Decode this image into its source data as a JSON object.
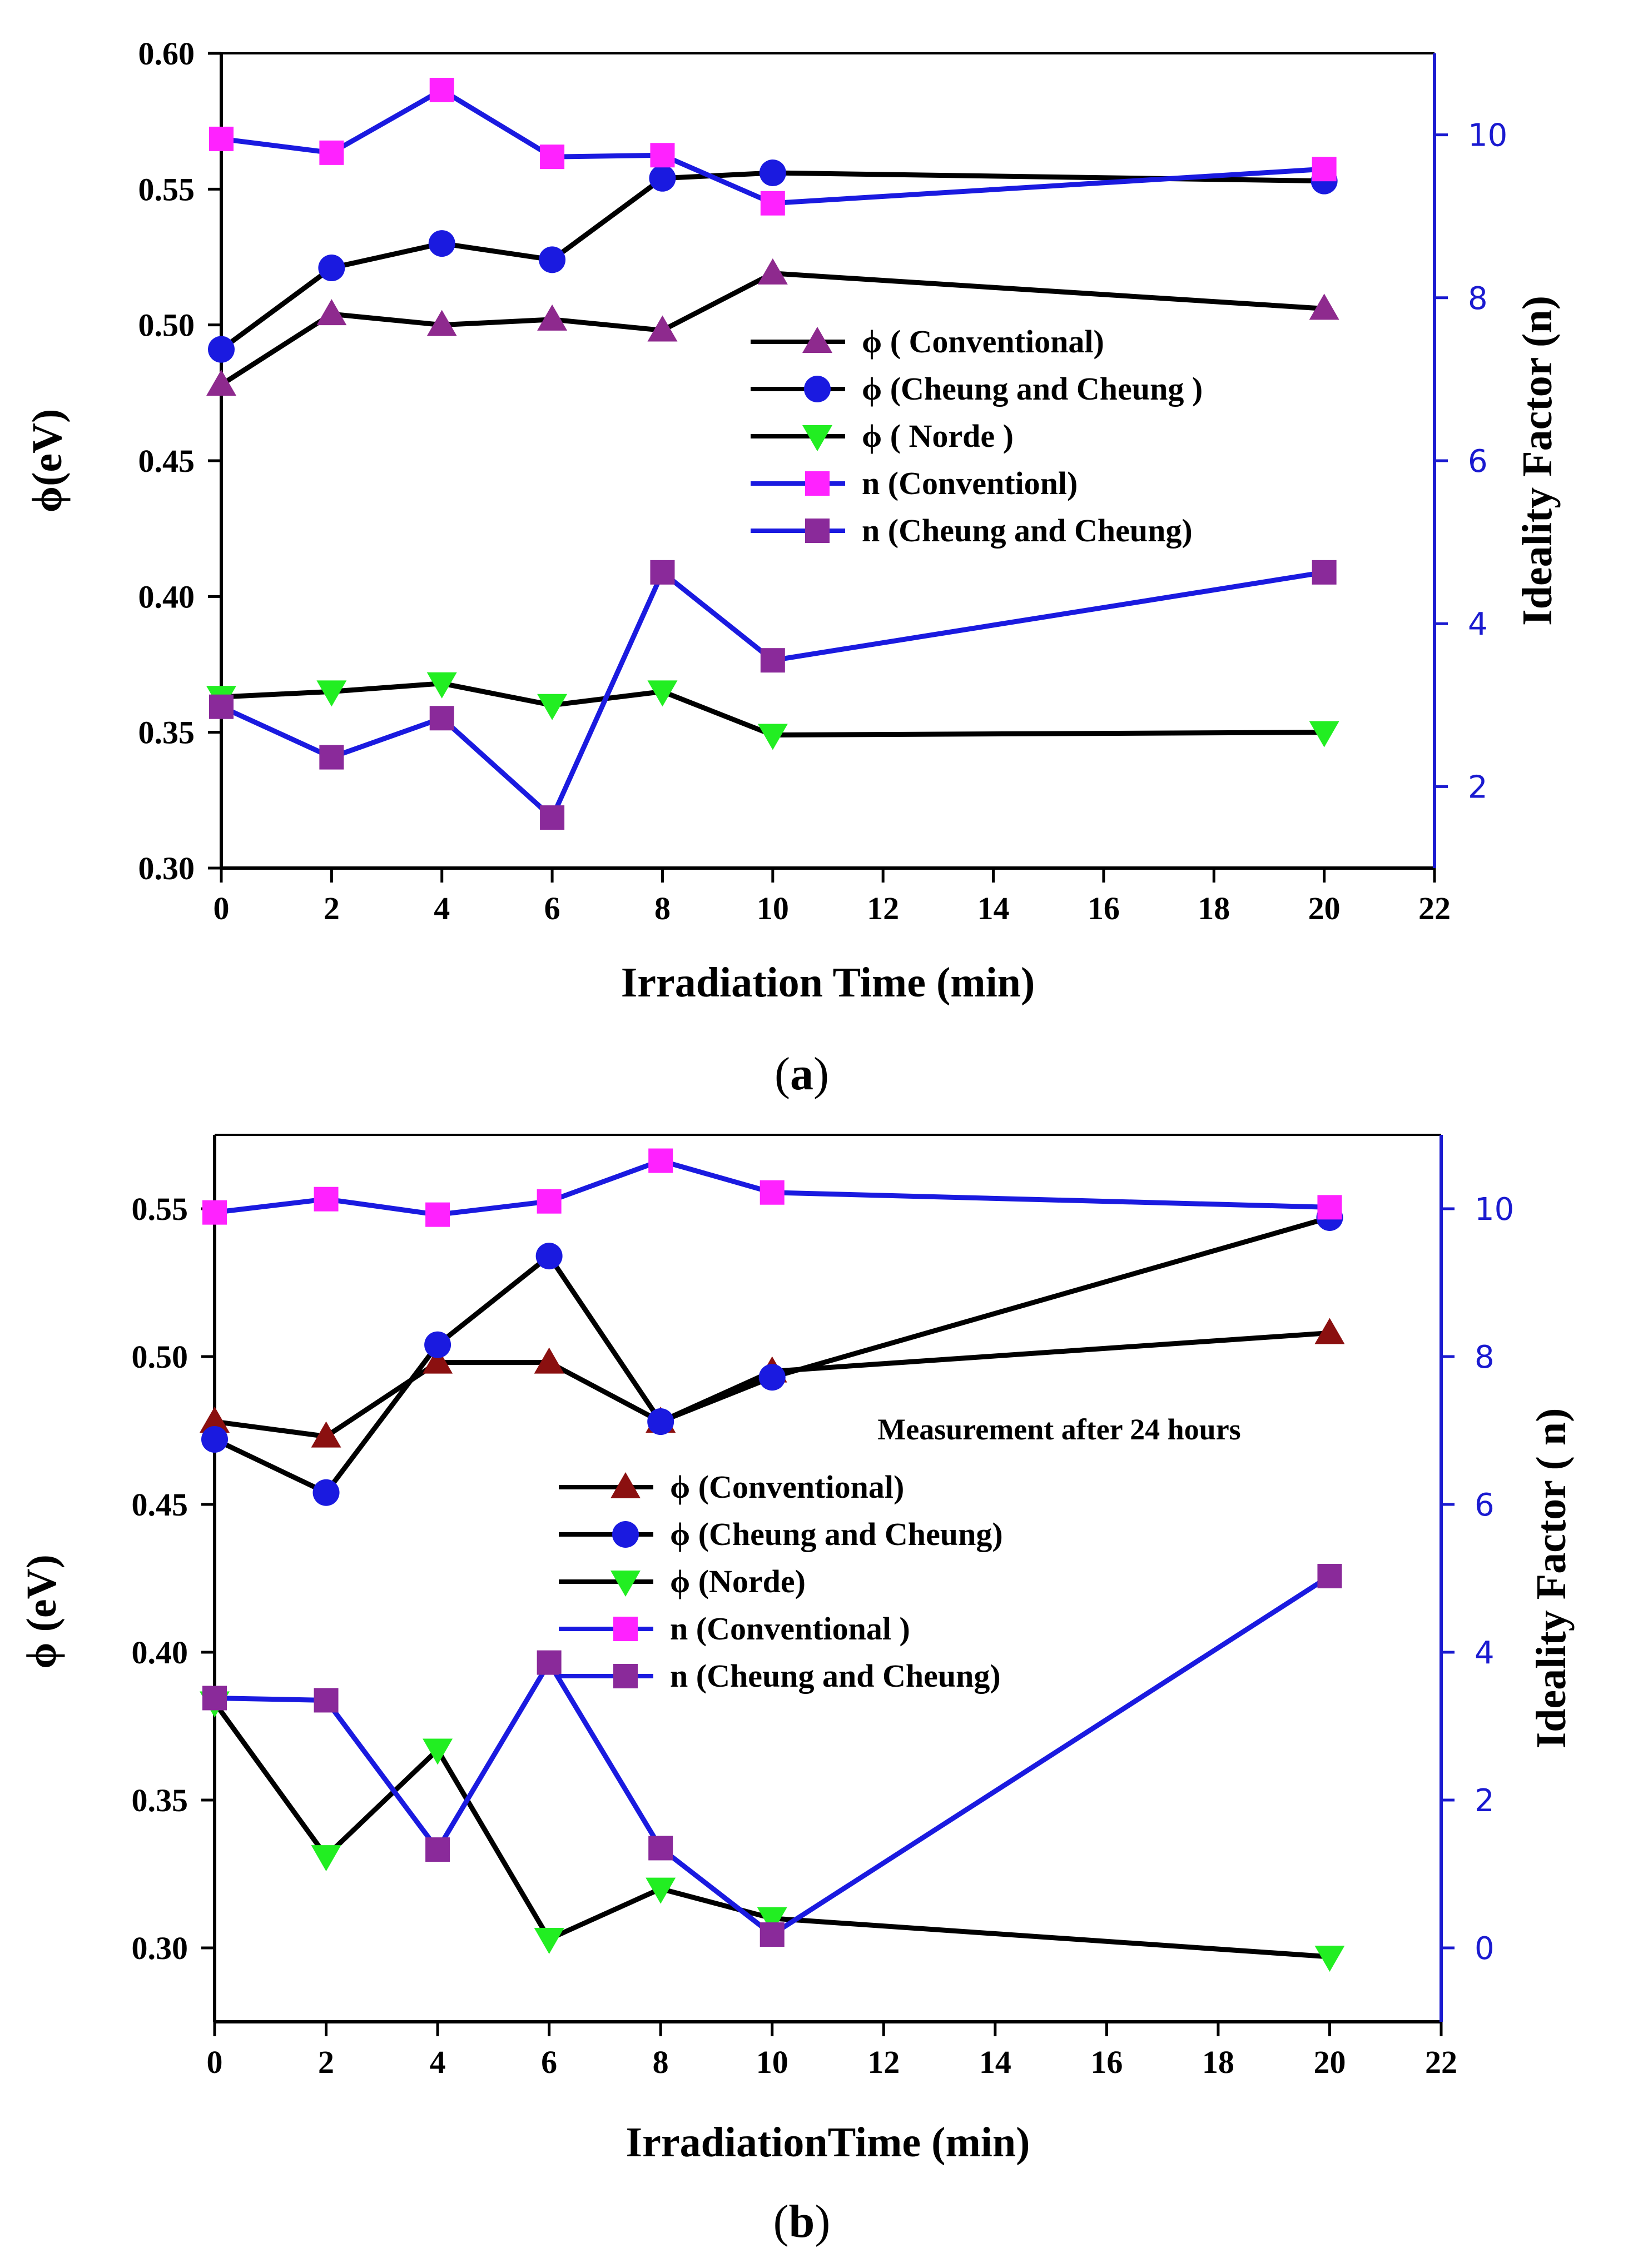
{
  "chart_data": [
    {
      "type": "line",
      "panel_label": "a",
      "xlabel": "Irradiation Time (min)",
      "ylabel_left": "ϕ(eV)",
      "ylabel_right": "Ideality Factor (n)",
      "xlim": [
        0,
        22
      ],
      "ylim_left": [
        0.3,
        0.6
      ],
      "ylim_right": [
        1,
        11
      ],
      "xticks": [
        0,
        2,
        4,
        6,
        8,
        10,
        12,
        14,
        16,
        18,
        20,
        22
      ],
      "yticks_left": [
        "0.30",
        "0.35",
        "0.40",
        "0.45",
        "0.50",
        "0.55",
        "0.60"
      ],
      "yticks_right": [
        "2",
        "4",
        "6",
        "8",
        "10"
      ],
      "legend_position": "center-right",
      "series": [
        {
          "name": "ϕ ( Conventional)",
          "axis": "left",
          "marker": "triangle-up",
          "line_color": "#000000",
          "marker_color": "#8e2a8e",
          "x": [
            0,
            2,
            4,
            6,
            8,
            10,
            20
          ],
          "values": [
            0.478,
            0.504,
            0.5,
            0.502,
            0.498,
            0.519,
            0.506
          ]
        },
        {
          "name": "ϕ  (Cheung and Cheung )",
          "axis": "left",
          "marker": "circle",
          "line_color": "#000000",
          "marker_color": "#1a1ae0",
          "x": [
            0,
            2,
            4,
            6,
            8,
            10,
            20
          ],
          "values": [
            0.491,
            0.521,
            0.53,
            0.524,
            0.554,
            0.556,
            0.553
          ]
        },
        {
          "name": "ϕ  ( Norde )",
          "axis": "left",
          "marker": "triangle-down",
          "line_color": "#000000",
          "marker_color": "#22ee22",
          "x": [
            0,
            2,
            4,
            6,
            8,
            10,
            20
          ],
          "values": [
            0.363,
            0.365,
            0.368,
            0.36,
            0.365,
            0.349,
            0.35
          ]
        },
        {
          "name": "n (Conventionl)",
          "axis": "right",
          "marker": "square",
          "line_color": "#1a1ae0",
          "marker_color": "#ff22ff",
          "x": [
            0,
            2,
            4,
            6,
            8,
            10,
            20
          ],
          "values": [
            9.95,
            9.78,
            10.55,
            9.73,
            9.75,
            9.16,
            9.58
          ]
        },
        {
          "name": "n (Cheung and Cheung)",
          "axis": "right",
          "marker": "square",
          "line_color": "#1a1ae0",
          "marker_color": "#8a2a9a",
          "x": [
            0,
            2,
            4,
            6,
            8,
            10,
            20
          ],
          "values": [
            2.98,
            2.36,
            2.84,
            1.62,
            4.63,
            3.55,
            4.63
          ]
        }
      ]
    },
    {
      "type": "line",
      "panel_label": "b",
      "annotation": "Measurement after 24 hours",
      "xlabel": "IrradiationTime (min)",
      "ylabel_left": "ϕ (eV)",
      "ylabel_right": "Ideality Factor ( n)",
      "xlim": [
        0,
        22
      ],
      "ylim_left": [
        0.275,
        0.575
      ],
      "ylim_right": [
        -1,
        11
      ],
      "xticks": [
        0,
        2,
        4,
        6,
        8,
        10,
        12,
        14,
        16,
        18,
        20,
        22
      ],
      "yticks_left": [
        "0.30",
        "0.35",
        "0.40",
        "0.45",
        "0.50",
        "0.55"
      ],
      "yticks_right": [
        "0",
        "2",
        "4",
        "6",
        "8",
        "10"
      ],
      "legend_position": "center",
      "series": [
        {
          "name": "ϕ  (Conventional)",
          "axis": "left",
          "marker": "triangle-up",
          "line_color": "#000000",
          "marker_color": "#8b1010",
          "x": [
            0,
            2,
            4,
            6,
            8,
            10,
            20
          ],
          "values": [
            0.478,
            0.473,
            0.498,
            0.498,
            0.478,
            0.495,
            0.508
          ]
        },
        {
          "name": "ϕ  (Cheung  and Cheung)",
          "axis": "left",
          "marker": "circle",
          "line_color": "#000000",
          "marker_color": "#1a1ae0",
          "x": [
            0,
            2,
            4,
            6,
            8,
            10,
            20
          ],
          "values": [
            0.472,
            0.454,
            0.504,
            0.534,
            0.478,
            0.493,
            0.547
          ]
        },
        {
          "name": "ϕ (Norde)",
          "axis": "left",
          "marker": "triangle-down",
          "line_color": "#000000",
          "marker_color": "#22ee22",
          "x": [
            0,
            2,
            4,
            6,
            8,
            10,
            20
          ],
          "values": [
            0.383,
            0.331,
            0.367,
            0.303,
            0.32,
            0.31,
            0.297
          ]
        },
        {
          "name": "n (Conventional )",
          "axis": "right",
          "marker": "square",
          "line_color": "#1a1ae0",
          "marker_color": "#ff22ff",
          "x": [
            0,
            2,
            4,
            6,
            8,
            10,
            20
          ],
          "values": [
            9.95,
            10.13,
            9.92,
            10.1,
            10.65,
            10.22,
            10.02
          ]
        },
        {
          "name": "n (Cheung and Cheung)",
          "axis": "right",
          "marker": "square",
          "line_color": "#1a1ae0",
          "marker_color": "#8a2a9a",
          "x": [
            0,
            2,
            4,
            6,
            8,
            10,
            20
          ],
          "values": [
            3.38,
            3.35,
            1.33,
            3.86,
            1.35,
            0.18,
            5.03
          ]
        }
      ]
    }
  ]
}
